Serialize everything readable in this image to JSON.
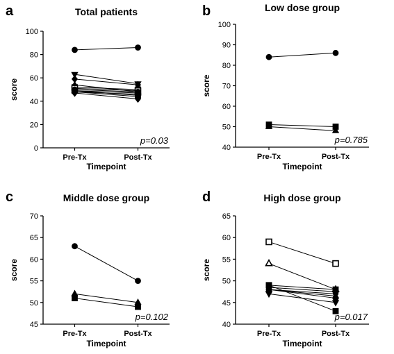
{
  "chart_data": [
    {
      "type": "line",
      "panel": "a",
      "title": "Total patients",
      "xlabel": "Timepoint",
      "ylabel": "score",
      "categories": [
        "Pre-Tx",
        "Post-Tx"
      ],
      "ylim": [
        0,
        100
      ],
      "yticks": [
        0,
        20,
        40,
        60,
        80,
        100
      ],
      "annotation": "p=0.03",
      "series": [
        {
          "marker": "circle",
          "values": [
            84,
            86
          ]
        },
        {
          "marker": "triangle-down",
          "values": [
            63,
            55
          ]
        },
        {
          "marker": "diamond",
          "values": [
            59,
            54
          ]
        },
        {
          "marker": "triangle",
          "values": [
            54,
            48
          ]
        },
        {
          "marker": "square",
          "values": [
            52,
            50
          ]
        },
        {
          "marker": "square-open",
          "values": [
            51,
            49
          ]
        },
        {
          "marker": "circle",
          "values": [
            50,
            48
          ]
        },
        {
          "marker": "triangle",
          "values": [
            49,
            47
          ]
        },
        {
          "marker": "square",
          "values": [
            49,
            45
          ]
        },
        {
          "marker": "circle",
          "values": [
            48,
            46
          ]
        },
        {
          "marker": "triangle-down",
          "values": [
            48,
            44
          ]
        },
        {
          "marker": "diamond",
          "values": [
            47,
            42
          ]
        }
      ]
    },
    {
      "type": "line",
      "panel": "b",
      "title": "Low dose group",
      "xlabel": "Timepoint",
      "ylabel": "score",
      "categories": [
        "Pre-Tx",
        "Post-Tx"
      ],
      "ylim": [
        40,
        100
      ],
      "yticks": [
        40,
        50,
        60,
        70,
        80,
        90,
        100
      ],
      "annotation": "p=0.785",
      "series": [
        {
          "marker": "circle",
          "values": [
            84,
            86
          ]
        },
        {
          "marker": "square",
          "values": [
            51,
            50
          ]
        },
        {
          "marker": "triangle",
          "values": [
            50,
            48
          ]
        }
      ]
    },
    {
      "type": "line",
      "panel": "c",
      "title": "Middle dose group",
      "xlabel": "Timepoint",
      "ylabel": "score",
      "categories": [
        "Pre-Tx",
        "Post-Tx"
      ],
      "ylim": [
        45,
        70
      ],
      "yticks": [
        45,
        50,
        55,
        60,
        65,
        70
      ],
      "annotation": "p=0.102",
      "series": [
        {
          "marker": "circle",
          "values": [
            63,
            55
          ]
        },
        {
          "marker": "triangle",
          "values": [
            52,
            50
          ]
        },
        {
          "marker": "square",
          "values": [
            51,
            49
          ]
        }
      ]
    },
    {
      "type": "line",
      "panel": "d",
      "title": "High dose group",
      "xlabel": "Timepoint",
      "ylabel": "score",
      "categories": [
        "Pre-Tx",
        "Post-Tx"
      ],
      "ylim": [
        40,
        65
      ],
      "yticks": [
        40,
        45,
        50,
        55,
        60,
        65
      ],
      "annotation": "p=0.017",
      "series": [
        {
          "marker": "square-open",
          "values": [
            59,
            54
          ]
        },
        {
          "marker": "triangle-open",
          "values": [
            54,
            48
          ]
        },
        {
          "marker": "square",
          "values": [
            49,
            48
          ]
        },
        {
          "marker": "circle",
          "values": [
            48.5,
            47.5
          ]
        },
        {
          "marker": "diamond",
          "values": [
            48,
            47
          ]
        },
        {
          "marker": "triangle",
          "values": [
            48,
            46.5
          ]
        },
        {
          "marker": "circle",
          "values": [
            48,
            46
          ]
        },
        {
          "marker": "triangle-down",
          "values": [
            47,
            45
          ]
        },
        {
          "marker": "square",
          "values": [
            49,
            43
          ]
        }
      ]
    }
  ]
}
